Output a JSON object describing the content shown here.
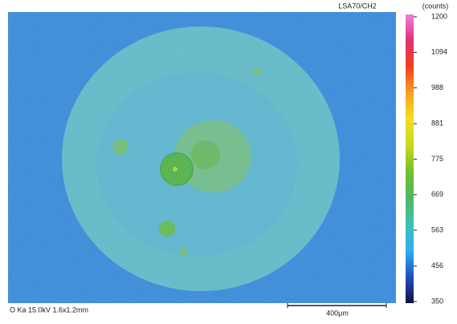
{
  "header": {
    "channel": "LSA70/CH2",
    "unit": "(counts)"
  },
  "colorbar": {
    "lim": [
      350,
      1200
    ],
    "ticks": [
      350,
      456,
      563,
      669,
      775,
      881,
      988,
      1094,
      1200
    ],
    "colors": [
      "#101040",
      "#2050c0",
      "#30b0f0",
      "#40c0b0",
      "#50b860",
      "#70c030",
      "#c8d820",
      "#f0e020",
      "#f8a020",
      "#f04020",
      "#e03070",
      "#f080e0"
    ]
  },
  "footer": {
    "conditions": "O Ka 15.0kV 1.6x1.2mm",
    "scale_bar": "400μm"
  }
}
